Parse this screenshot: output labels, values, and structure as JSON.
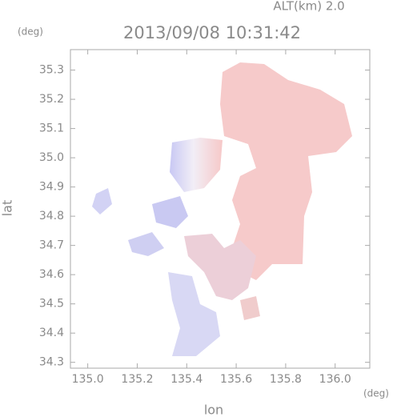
{
  "chart_data": {
    "type": "map",
    "title": "2013/09/08 10:31:42",
    "subtitle": "ALT(km) 2.0",
    "x_label": "lon",
    "y_label": "lat",
    "x_unit": "(deg)",
    "y_unit": "(deg)",
    "xlim": [
      134.93,
      136.14
    ],
    "ylim": [
      34.28,
      35.37
    ],
    "xticks": [
      {
        "value": 135,
        "label": "135.0"
      },
      135.2,
      135.4,
      135.6,
      135.8,
      {
        "value": 136,
        "label": "136.0"
      }
    ],
    "yticks": [
      34.3,
      34.4,
      34.5,
      34.6,
      34.7,
      34.8,
      34.9,
      {
        "value": 35,
        "label": "35.0"
      },
      35.1,
      35.2,
      35.3
    ]
  }
}
